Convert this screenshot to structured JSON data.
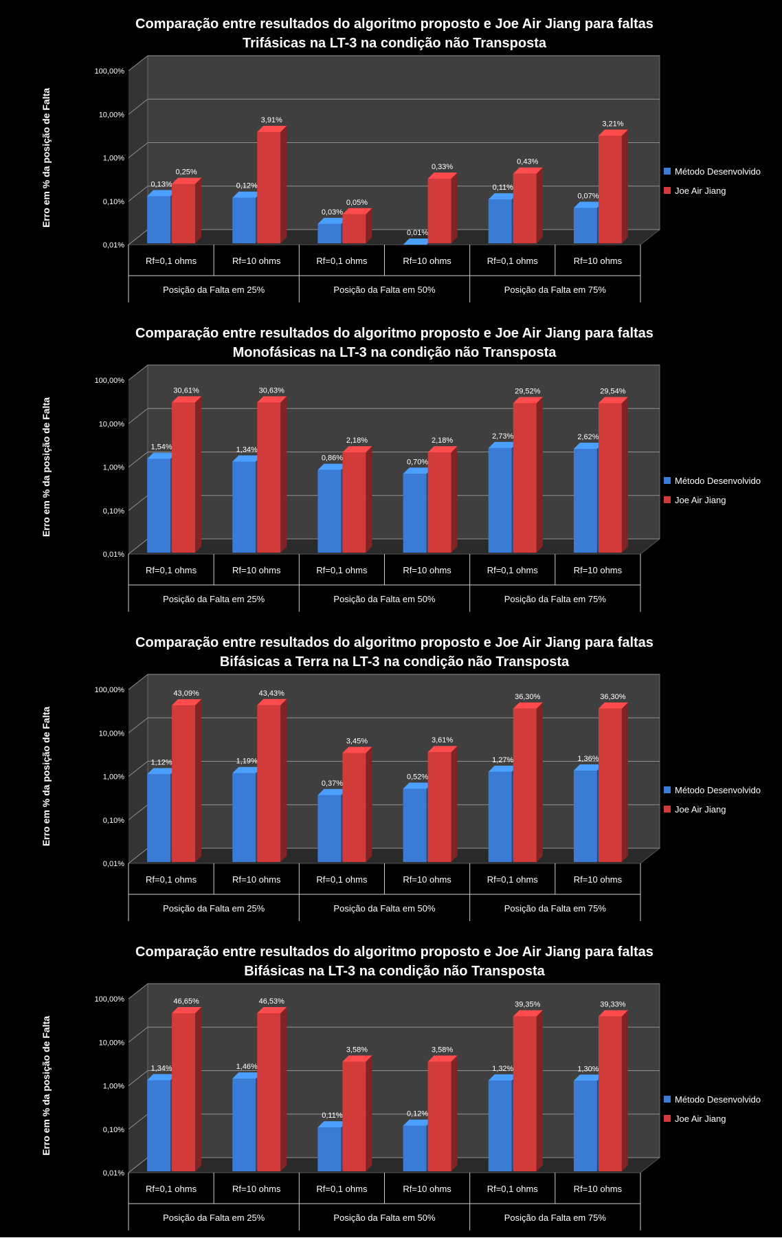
{
  "categories": [
    "Rf=0,1 ohms",
    "Rf=10 ohms",
    "Rf=0,1 ohms",
    "Rf=10 ohms",
    "Rf=0,1 ohms",
    "Rf=10 ohms"
  ],
  "groups": [
    "Posição da Falta em 25%",
    "Posição da Falta em 50%",
    "Posição da Falta em 75%"
  ],
  "colors": {
    "series1": "#3a7bd5",
    "series2": "#d33a3a"
  },
  "chart_data": [
    {
      "type": "bar",
      "title": "Comparação  entre resultados do algoritmo proposto e Joe Air Jiang para faltas",
      "subtitle": "Trifásicas  na LT-3 na condição não Transposta",
      "ylabel": "Erro em % da posição de Falta",
      "y_scale": "log",
      "ylim": [
        0.01,
        100
      ],
      "y_ticks": [
        "0,01%",
        "0,10%",
        "1,00%",
        "10,00%",
        "100,00%"
      ],
      "legend_position": "right",
      "series": [
        {
          "name": "Método Desenvolvido",
          "values": [
            0.13,
            0.12,
            0.03,
            0.01,
            0.11,
            0.07
          ],
          "labels": [
            "0,13%",
            "0,12%",
            "0,03%",
            "0,01%",
            "0,11%",
            "0,07%"
          ]
        },
        {
          "name": "Joe Air Jiang",
          "values": [
            0.25,
            3.91,
            0.05,
            0.33,
            0.43,
            3.21
          ],
          "labels": [
            "0,25%",
            "3,91%",
            "0,05%",
            "0,33%",
            "0,43%",
            "3,21%"
          ]
        }
      ]
    },
    {
      "type": "bar",
      "title": "Comparação  entre resultados do algoritmo proposto e Joe Air Jiang para faltas",
      "subtitle": "Monofásicas  na LT-3 na condição não Transposta",
      "ylabel": "Erro em % da posição de Falta",
      "y_scale": "log",
      "ylim": [
        0.01,
        100
      ],
      "y_ticks": [
        "0,01%",
        "0,10%",
        "1,00%",
        "10,00%",
        "100,00%"
      ],
      "legend_position": "right",
      "series": [
        {
          "name": "Método Desenvolvido",
          "values": [
            1.54,
            1.34,
            0.86,
            0.7,
            2.73,
            2.62
          ],
          "labels": [
            "1,54%",
            "1,34%",
            "0,86%",
            "0,70%",
            "2,73%",
            "2,62%"
          ]
        },
        {
          "name": "Joe Air Jiang",
          "values": [
            30.61,
            30.63,
            2.18,
            2.18,
            29.52,
            29.54
          ],
          "labels": [
            "30,61%",
            "30,63%",
            "2,18%",
            "2,18%",
            "29,52%",
            "29,54%"
          ]
        }
      ]
    },
    {
      "type": "bar",
      "title": "Comparação  entre resultados do algoritmo proposto e Joe Air Jiang para faltas",
      "subtitle": "Bifásicas a Terra  na LT-3 na condição não Transposta",
      "ylabel": "Erro em % da posição de Falta",
      "y_scale": "log",
      "ylim": [
        0.01,
        100
      ],
      "y_ticks": [
        "0,01%",
        "0,10%",
        "1,00%",
        "10,00%",
        "100,00%"
      ],
      "legend_position": "right",
      "series": [
        {
          "name": "Método Desenvolvido",
          "values": [
            1.12,
            1.19,
            0.37,
            0.52,
            1.27,
            1.36
          ],
          "labels": [
            "1,12%",
            "1,19%",
            "0,37%",
            "0,52%",
            "1,27%",
            "1,36%"
          ]
        },
        {
          "name": "Joe Air Jiang",
          "values": [
            43.09,
            43.43,
            3.45,
            3.61,
            36.3,
            36.3
          ],
          "labels": [
            "43,09%",
            "43,43%",
            "3,45%",
            "3,61%",
            "36,30%",
            "36,30%"
          ]
        }
      ]
    },
    {
      "type": "bar",
      "title": "Comparação  entre resultados do algoritmo proposto e Joe Air Jiang para faltas",
      "subtitle": "Bifásicas  na LT-3 na condição não Transposta",
      "ylabel": "Erro em % da posição de Falta",
      "y_scale": "log",
      "ylim": [
        0.01,
        100
      ],
      "y_ticks": [
        "0,01%",
        "0,10%",
        "1,00%",
        "10,00%",
        "100,00%"
      ],
      "legend_position": "right",
      "series": [
        {
          "name": "Método Desenvolvido",
          "values": [
            1.34,
            1.46,
            0.11,
            0.12,
            1.32,
            1.3
          ],
          "labels": [
            "1,34%",
            "1,46%",
            "0,11%",
            "0,12%",
            "1,32%",
            "1,30%"
          ]
        },
        {
          "name": "Joe Air Jiang",
          "values": [
            46.65,
            46.53,
            3.58,
            3.58,
            39.35,
            39.33
          ],
          "labels": [
            "46,65%",
            "46,53%",
            "3,58%",
            "3,58%",
            "39,35%",
            "39,33%"
          ]
        }
      ]
    }
  ]
}
